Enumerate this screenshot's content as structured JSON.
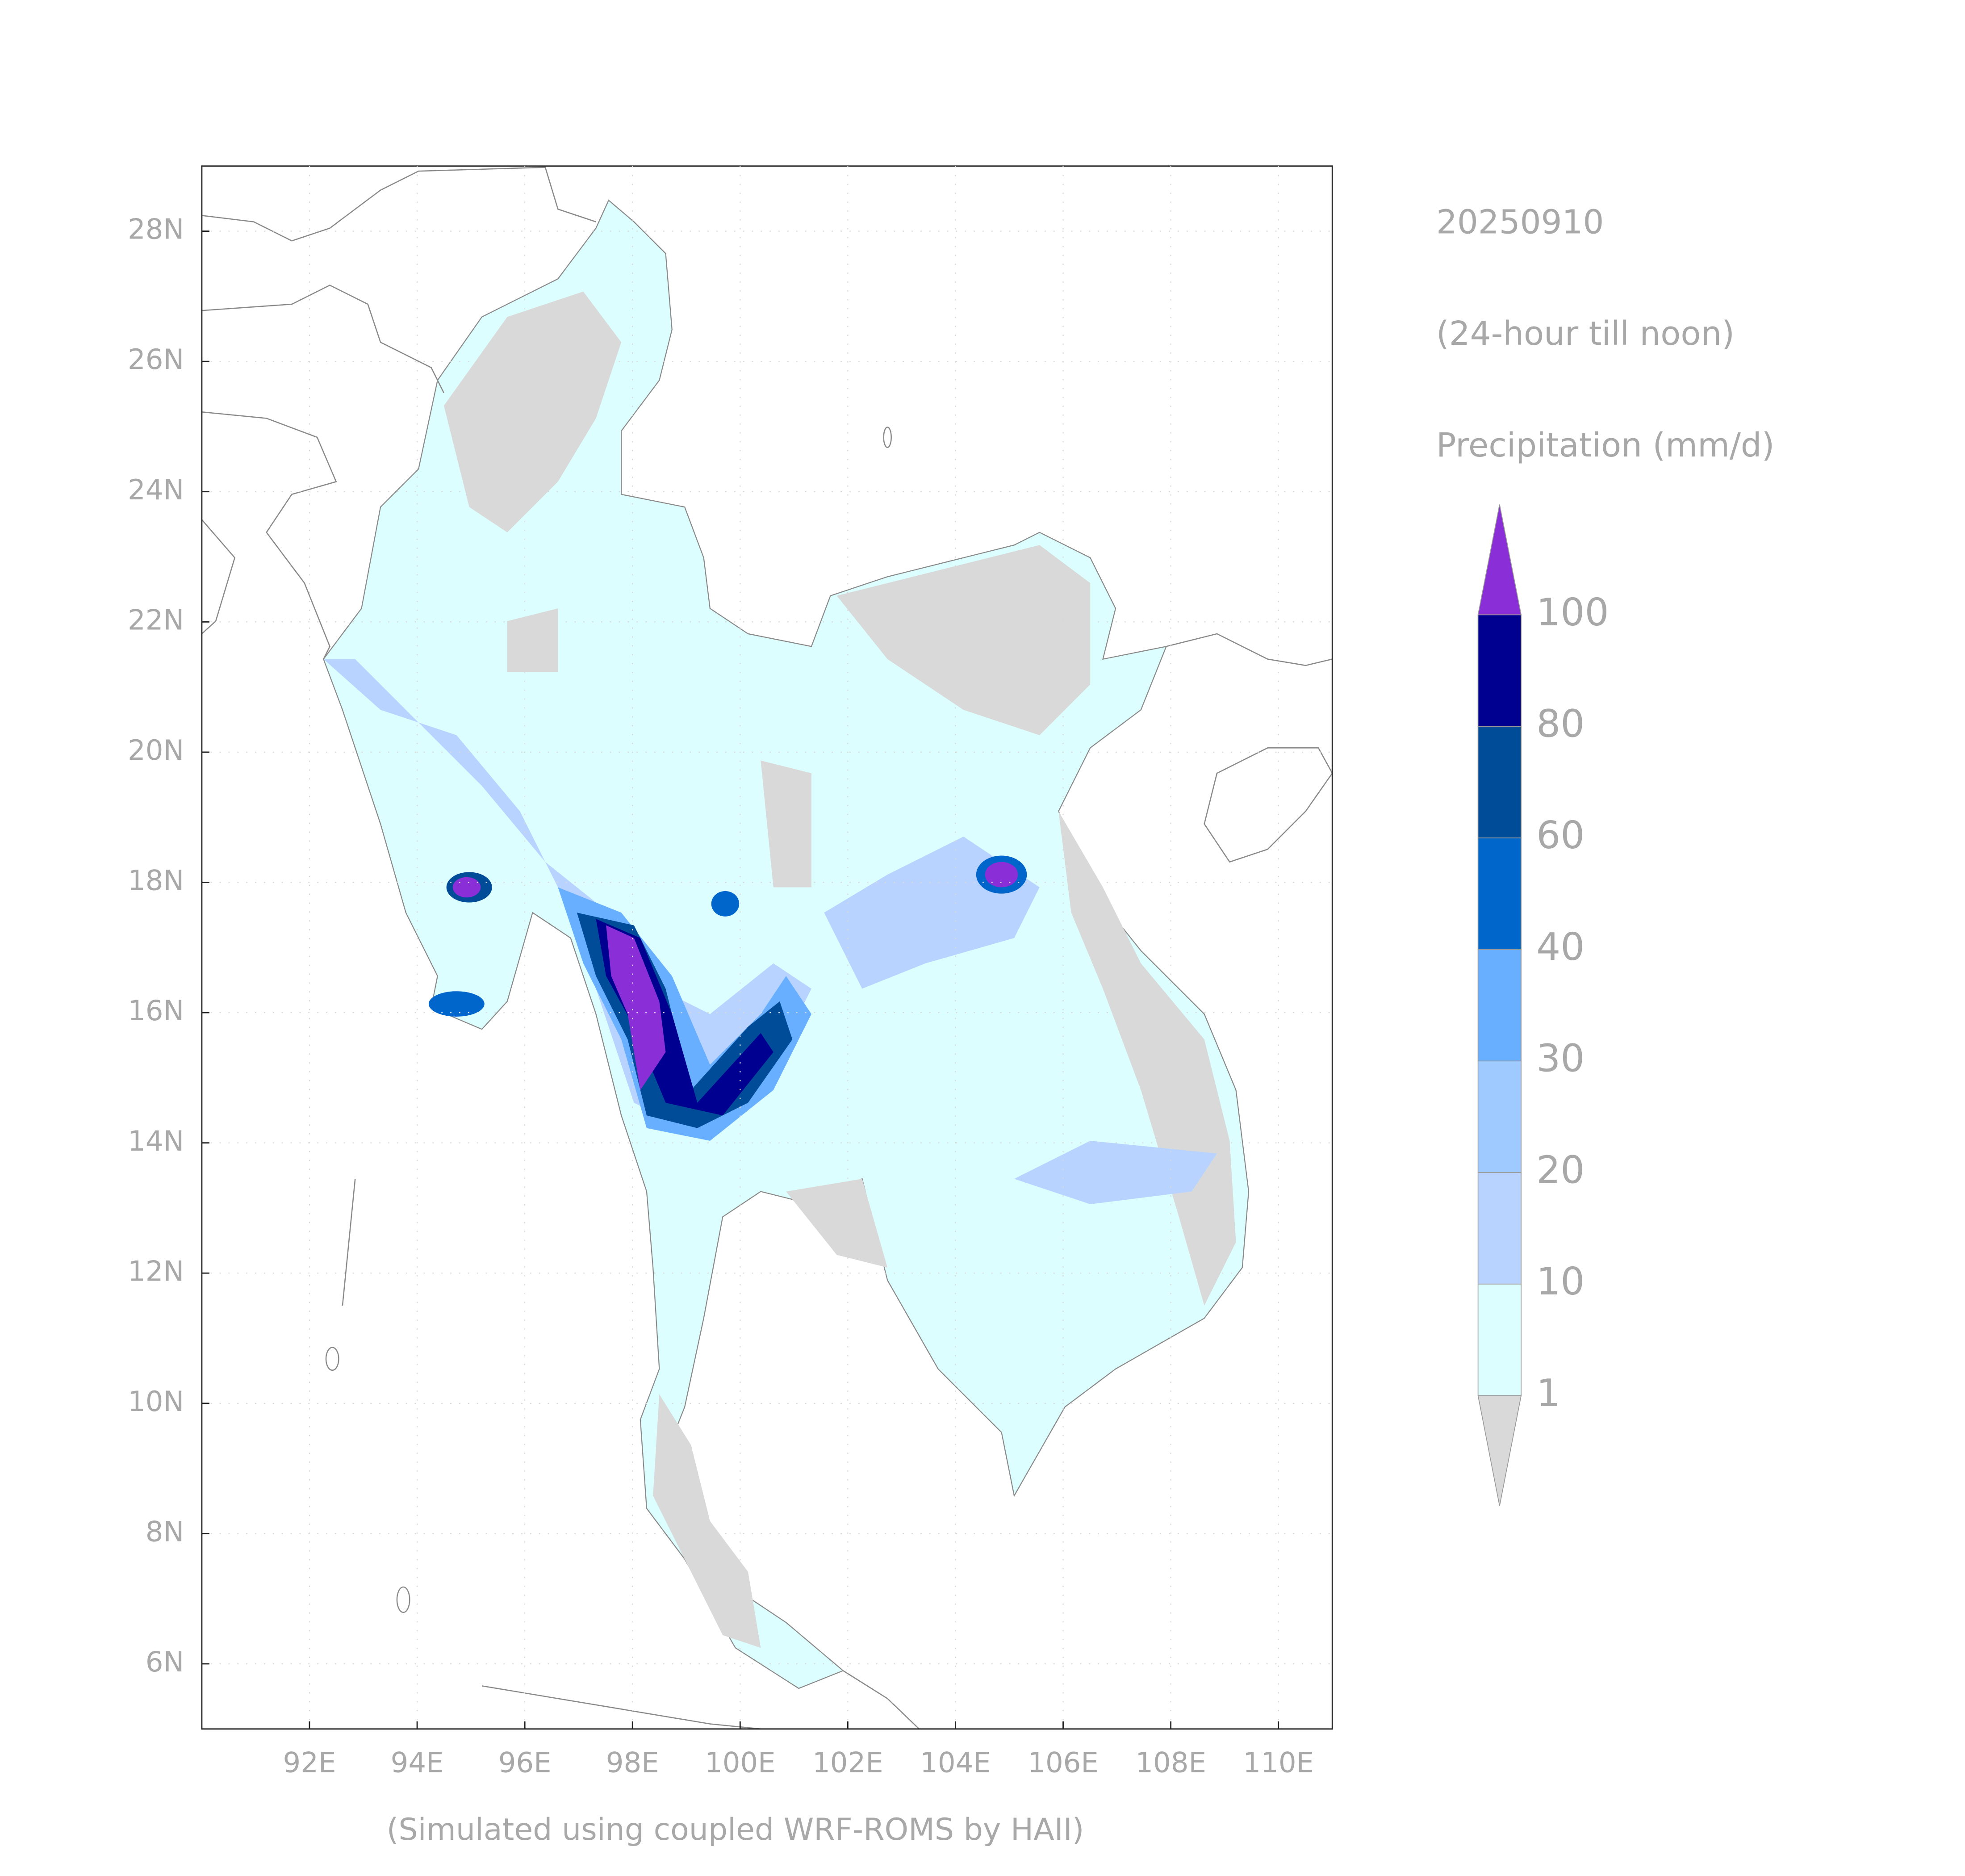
{
  "title": {
    "date": "20250910",
    "period": "(24-hour till noon)",
    "variable": "Precipitation (mm/d)"
  },
  "footer": "(Simulated using coupled WRF-ROMS by HAII)",
  "map": {
    "lonlim": [
      90,
      111
    ],
    "latlim": [
      5,
      29
    ],
    "lon_ticks": [
      {
        "value": 92,
        "label": "92E"
      },
      {
        "value": 94,
        "label": "94E"
      },
      {
        "value": 96,
        "label": "96E"
      },
      {
        "value": 98,
        "label": "98E"
      },
      {
        "value": 100,
        "label": "100E"
      },
      {
        "value": 102,
        "label": "102E"
      },
      {
        "value": 104,
        "label": "104E"
      },
      {
        "value": 106,
        "label": "106E"
      },
      {
        "value": 108,
        "label": "108E"
      },
      {
        "value": 110,
        "label": "110E"
      }
    ],
    "lat_ticks": [
      {
        "value": 6,
        "label": "6N"
      },
      {
        "value": 8,
        "label": "8N"
      },
      {
        "value": 10,
        "label": "10N"
      },
      {
        "value": 12,
        "label": "12N"
      },
      {
        "value": 14,
        "label": "14N"
      },
      {
        "value": 16,
        "label": "16N"
      },
      {
        "value": 18,
        "label": "18N"
      },
      {
        "value": 20,
        "label": "20N"
      },
      {
        "value": 22,
        "label": "22N"
      },
      {
        "value": 24,
        "label": "24N"
      },
      {
        "value": 26,
        "label": "26N"
      },
      {
        "value": 28,
        "label": "28N"
      }
    ]
  },
  "legend": {
    "levels": [
      1,
      10,
      20,
      30,
      40,
      60,
      80,
      100
    ],
    "colors": [
      "#d9d9d9",
      "#dcfefe",
      "#b8d3ff",
      "#9ecaff",
      "#68b0ff",
      "#0066cc",
      "#004c99",
      "#000090",
      "#8a2fd8"
    ]
  }
}
